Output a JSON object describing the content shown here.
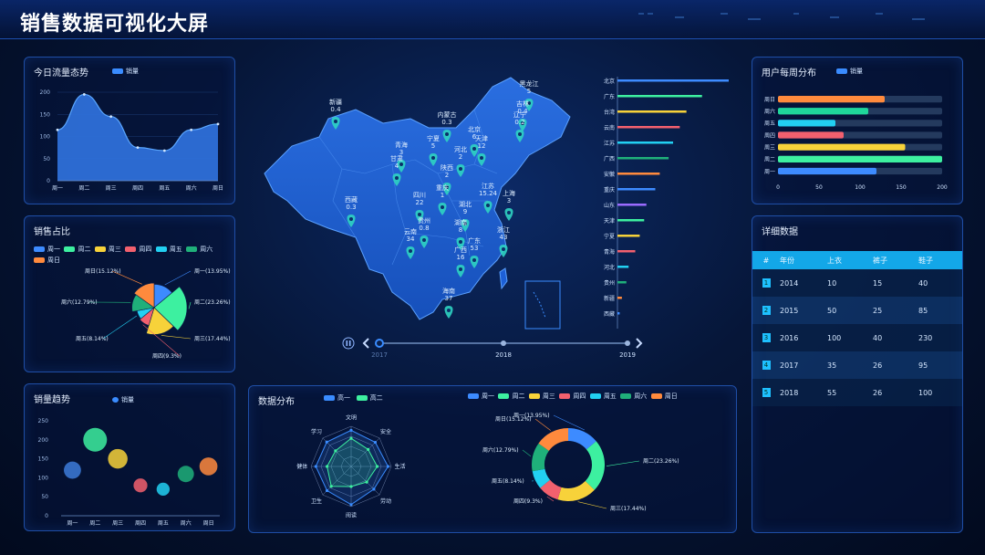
{
  "header": {
    "title": "销售数据可视化大屏"
  },
  "colors": {
    "accent": "#1ec0ff",
    "panel_border": "#1f4ea6",
    "map_fill": "#1d5fd6"
  },
  "traffic": {
    "title": "今日流量态势",
    "legend": "销量",
    "y_ticks": [
      "200",
      "150",
      "100",
      "50",
      "0"
    ],
    "x_ticks": [
      "周一",
      "周二",
      "周三",
      "周四",
      "周五",
      "周六",
      "周日"
    ]
  },
  "share": {
    "title": "销售占比",
    "legend": [
      "周一",
      "周二",
      "周三",
      "周四",
      "周五",
      "周六",
      "周日"
    ],
    "labels": [
      "周一(13.95%)",
      "周二(23.26%)",
      "周三(17.44%)",
      "周四(9.3%)",
      "周五(8.14%)",
      "周六(12.79%)",
      "周日(15.12%)"
    ]
  },
  "trend": {
    "title": "销量趋势",
    "legend": "销量",
    "y_ticks": [
      "250",
      "200",
      "150",
      "100",
      "50",
      "0"
    ],
    "x_ticks": [
      "周一",
      "周二",
      "周三",
      "周四",
      "周五",
      "周六",
      "周日"
    ]
  },
  "distribution": {
    "title": "数据分布",
    "radar_legend": [
      "高一",
      "高二"
    ],
    "radar_axes": [
      "文明",
      "安全",
      "生活",
      "劳动",
      "阅读",
      "卫生",
      "健体",
      "学习"
    ],
    "donut_legend": [
      "周一",
      "周二",
      "周三",
      "周四",
      "周五",
      "周六",
      "周日"
    ],
    "donut_labels": [
      "周一(13.95%)",
      "周二(23.26%)",
      "周三(17.44%)",
      "周四(9.3%)",
      "周五(8.14%)",
      "周六(12.79%)",
      "周日(15.12%)"
    ]
  },
  "weekly_users": {
    "title": "用户每周分布",
    "legend": "销量",
    "x_ticks": [
      "0",
      "50",
      "100",
      "150",
      "200"
    ]
  },
  "details": {
    "title": "详细数据",
    "headers": [
      "#",
      "年份",
      "上衣",
      "裤子",
      "鞋子"
    ],
    "rows": [
      [
        "1",
        "2014",
        "10",
        "15",
        "40"
      ],
      [
        "2",
        "2015",
        "50",
        "25",
        "85"
      ],
      [
        "3",
        "2016",
        "100",
        "40",
        "230"
      ],
      [
        "4",
        "2017",
        "35",
        "26",
        "95"
      ],
      [
        "5",
        "2018",
        "55",
        "26",
        "100"
      ]
    ]
  },
  "map": {
    "labels": [
      {
        "name": "新疆",
        "value": "0.4"
      },
      {
        "name": "西藏",
        "value": "0.3"
      },
      {
        "name": "内蒙古",
        "value": "0.3"
      },
      {
        "name": "黑龙江",
        "value": "5"
      },
      {
        "name": "吉林",
        "value": "0.4"
      },
      {
        "name": "辽宁",
        "value": "0.2"
      },
      {
        "name": "青海",
        "value": "3"
      },
      {
        "name": "甘肃",
        "value": "4"
      },
      {
        "name": "宁夏",
        "value": "5"
      },
      {
        "name": "陕西",
        "value": "2"
      },
      {
        "name": "四川",
        "value": "22"
      },
      {
        "name": "重庆",
        "value": "1"
      },
      {
        "name": "云南",
        "value": "34"
      },
      {
        "name": "贵州",
        "value": "0.8"
      },
      {
        "name": "广西",
        "value": "16"
      },
      {
        "name": "广东",
        "value": "53"
      },
      {
        "name": "海南",
        "value": "37"
      },
      {
        "name": "江苏",
        "value": "15.24"
      },
      {
        "name": "上海",
        "value": "3"
      },
      {
        "name": "浙江",
        "value": "43"
      },
      {
        "name": "天津",
        "value": "12"
      },
      {
        "name": "北京",
        "value": "6"
      },
      {
        "name": "河北",
        "value": "2"
      },
      {
        "name": "湖北",
        "value": "9"
      },
      {
        "name": "湖南",
        "value": "8"
      }
    ],
    "timeline": [
      "2017",
      "2018",
      "2019"
    ]
  },
  "ranking": {
    "provinces": [
      "北京",
      "广东",
      "台湾",
      "云南",
      "江苏",
      "广西",
      "安徽",
      "重庆",
      "山东",
      "天津",
      "宁夏",
      "青海",
      "河北",
      "贵州",
      "新疆",
      "西藏"
    ]
  },
  "chart_data": [
    {
      "type": "area",
      "title": "今日流量态势",
      "categories": [
        "周一",
        "周二",
        "周三",
        "周四",
        "周五",
        "周六",
        "周日"
      ],
      "series": [
        {
          "name": "销量",
          "values": [
            115,
            195,
            145,
            75,
            68,
            115,
            128
          ]
        }
      ],
      "ylim": [
        0,
        200
      ]
    },
    {
      "type": "pie",
      "title": "销售占比",
      "categories": [
        "周一",
        "周二",
        "周三",
        "周四",
        "周五",
        "周六",
        "周日"
      ],
      "values": [
        13.95,
        23.26,
        17.44,
        9.3,
        8.14,
        12.79,
        15.12
      ]
    },
    {
      "type": "scatter",
      "title": "销量趋势",
      "categories": [
        "周一",
        "周二",
        "周三",
        "周四",
        "周五",
        "周六",
        "周日"
      ],
      "series": [
        {
          "name": "销量",
          "values": [
            120,
            200,
            150,
            80,
            70,
            110,
            130
          ]
        }
      ],
      "ylim": [
        0,
        250
      ]
    },
    {
      "type": "radar",
      "title": "数据分布",
      "axes": [
        "文明",
        "安全",
        "生活",
        "劳动",
        "阅读",
        "卫生",
        "健体",
        "学习"
      ],
      "series": [
        {
          "name": "高一",
          "values": [
            90,
            85,
            92,
            80,
            95,
            85,
            88,
            86
          ]
        },
        {
          "name": "高二",
          "values": [
            70,
            60,
            65,
            55,
            50,
            70,
            60,
            55
          ]
        }
      ]
    },
    {
      "type": "pie",
      "categories": [
        "周一",
        "周二",
        "周三",
        "周四",
        "周五",
        "周六",
        "周日"
      ],
      "values": [
        13.95,
        23.26,
        17.44,
        9.3,
        8.14,
        12.79,
        15.12
      ]
    },
    {
      "type": "bar",
      "title": "用户每周分布",
      "categories": [
        "周日",
        "周六",
        "周五",
        "周四",
        "周三",
        "周二",
        "周一"
      ],
      "series": [
        {
          "name": "销量",
          "values": [
            130,
            110,
            70,
            80,
            155,
            200,
            120
          ]
        }
      ],
      "xlim": [
        0,
        200
      ]
    },
    {
      "type": "bar",
      "categories": [
        "北京",
        "广东",
        "台湾",
        "云南",
        "江苏",
        "广西",
        "安徽",
        "重庆",
        "山东",
        "天津",
        "宁夏",
        "青海",
        "河北",
        "贵州",
        "新疆",
        "西藏"
      ],
      "values": [
        100,
        76,
        62,
        56,
        50,
        46,
        38,
        34,
        26,
        24,
        20,
        16,
        10,
        8,
        4,
        2
      ]
    }
  ]
}
